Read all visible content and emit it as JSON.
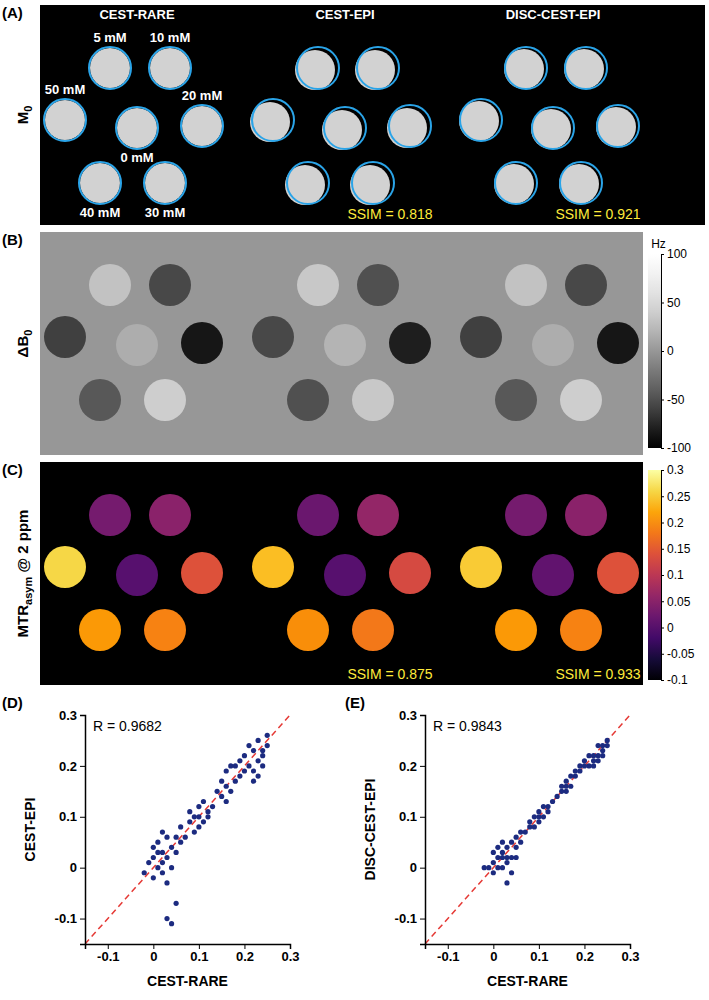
{
  "chart_data": [
    {
      "type": "image",
      "panel": "(A)",
      "columns": [
        "CEST-RARE",
        "CEST-EPI",
        "DISC-CEST-EPI"
      ],
      "row_label": [
        {
          "text": "M"
        },
        {
          "text": "0",
          "sub": true
        }
      ],
      "vial_labels": [
        "5 mM",
        "10 mM",
        "50 mM",
        "0 mM",
        "20 mM",
        "40 mM",
        "30 mM"
      ],
      "annotations": [
        {
          "column": 1,
          "text": "SSIM = 0.818"
        },
        {
          "column": 2,
          "text": "SSIM = 0.921"
        }
      ]
    },
    {
      "type": "heatmap",
      "panel": "(B)",
      "row_label": [
        {
          "text": "ΔB"
        },
        {
          "text": "0",
          "sub": true
        }
      ],
      "values": [
        [
          30,
          -55,
          -60,
          15,
          -85,
          -45,
          40
        ],
        [
          35,
          -50,
          -55,
          20,
          -80,
          -50,
          35
        ],
        [
          30,
          -55,
          -60,
          15,
          -85,
          -45,
          40
        ]
      ],
      "color": "gray",
      "colorbar": {
        "range": [
          -100,
          100
        ],
        "ticks": [
          -100,
          -50,
          0,
          50,
          100
        ],
        "title": "Hz"
      }
    },
    {
      "type": "heatmap",
      "panel": "(C)",
      "row_label": [
        {
          "text": "MTR"
        },
        {
          "text": "asym",
          "sub": true
        },
        {
          "text": " @ 2 ppm"
        }
      ],
      "values": [
        [
          0.03,
          0.05,
          0.26,
          0.0,
          0.14,
          0.21,
          0.19
        ],
        [
          0.02,
          0.06,
          0.24,
          0.0,
          0.13,
          0.2,
          0.18
        ],
        [
          0.03,
          0.05,
          0.25,
          0.01,
          0.14,
          0.21,
          0.19
        ]
      ],
      "color": "inferno",
      "colorbar": {
        "range": [
          -0.1,
          0.3
        ],
        "ticks": [
          -0.1,
          -0.05,
          0,
          0.05,
          0.1,
          0.15,
          0.2,
          0.25,
          0.3
        ]
      },
      "annotations": [
        {
          "column": 1,
          "text": "SSIM = 0.875"
        },
        {
          "column": 2,
          "text": "SSIM = 0.933"
        }
      ]
    },
    {
      "type": "scatter",
      "panel": "(D)",
      "x_label": "CEST-RARE",
      "y_label": "CEST-EPI",
      "annotation": "R = 0.9682",
      "color": "#1c2b80",
      "marker": "circle",
      "xlim": [
        -0.15,
        0.3
      ],
      "ylim": [
        -0.15,
        0.3
      ],
      "xticks": [
        -0.1,
        0,
        0.1,
        0.2,
        0.3
      ],
      "yticks": [
        -0.1,
        0,
        0.1,
        0.2,
        0.3
      ],
      "x": [
        -0.02,
        0.0,
        0.01,
        0.02,
        0.01,
        0.03,
        0.0,
        0.02,
        0.04,
        0.03,
        0.05,
        0.04,
        0.01,
        0.02,
        0.05,
        0.03,
        0.0,
        -0.01,
        0.03,
        0.04,
        0.05,
        0.06,
        0.06,
        0.02,
        0.07,
        0.08,
        0.09,
        0.1,
        0.1,
        0.11,
        0.12,
        0.09,
        0.1,
        0.11,
        0.08,
        0.12,
        0.13,
        0.14,
        0.15,
        0.16,
        0.17,
        0.15,
        0.18,
        0.16,
        0.17,
        0.19,
        0.18,
        0.16,
        0.19,
        0.2,
        0.2,
        0.21,
        0.22,
        0.23,
        0.22,
        0.24,
        0.23,
        0.25,
        0.24,
        0.21,
        0.25,
        0.22,
        0.24,
        0.23
      ],
      "y": [
        -0.01,
        0.02,
        0.0,
        0.03,
        0.05,
        0.02,
        -0.02,
        -0.01,
        0.04,
        0.06,
        0.03,
        0.0,
        0.03,
        0.07,
        0.06,
        -0.03,
        0.04,
        0.01,
        -0.1,
        -0.11,
        -0.07,
        0.05,
        0.08,
        0.01,
        0.06,
        0.09,
        0.1,
        0.1,
        0.12,
        0.09,
        0.11,
        0.07,
        0.08,
        0.13,
        0.11,
        0.1,
        0.12,
        0.15,
        0.14,
        0.16,
        0.15,
        0.17,
        0.17,
        0.19,
        0.2,
        0.18,
        0.2,
        0.13,
        0.21,
        0.19,
        0.22,
        0.2,
        0.23,
        0.21,
        0.19,
        0.23,
        0.25,
        0.24,
        0.2,
        0.24,
        0.26,
        0.17,
        0.22,
        0.18
      ]
    },
    {
      "type": "scatter",
      "panel": "(E)",
      "x_label": "CEST-RARE",
      "y_label": "DISC-CEST-EPI",
      "annotation": "R = 0.9843",
      "color": "#1c2b80",
      "marker": "circle",
      "xlim": [
        -0.15,
        0.3
      ],
      "ylim": [
        -0.15,
        0.3
      ],
      "xticks": [
        -0.1,
        0,
        0.1,
        0.2,
        0.3
      ],
      "yticks": [
        -0.1,
        0,
        0.1,
        0.2,
        0.3
      ],
      "x": [
        -0.02,
        0.0,
        0.01,
        0.02,
        0.01,
        0.03,
        0.0,
        0.02,
        0.04,
        0.03,
        0.05,
        0.04,
        0.01,
        0.02,
        0.05,
        0.03,
        0.0,
        -0.01,
        0.03,
        0.04,
        0.05,
        0.06,
        0.06,
        0.02,
        0.07,
        0.08,
        0.09,
        0.1,
        0.1,
        0.11,
        0.12,
        0.09,
        0.1,
        0.11,
        0.08,
        0.12,
        0.13,
        0.14,
        0.15,
        0.16,
        0.17,
        0.15,
        0.18,
        0.16,
        0.17,
        0.19,
        0.18,
        0.16,
        0.19,
        0.2,
        0.2,
        0.21,
        0.22,
        0.23,
        0.22,
        0.24,
        0.23,
        0.25,
        0.24,
        0.21,
        0.25,
        0.22,
        0.24,
        0.23
      ],
      "y": [
        0.0,
        0.01,
        0.0,
        0.03,
        0.04,
        0.02,
        -0.01,
        0.0,
        0.05,
        0.04,
        0.04,
        0.02,
        0.02,
        0.05,
        0.06,
        0.01,
        0.03,
        0.0,
        -0.03,
        -0.01,
        0.02,
        0.05,
        0.07,
        0.02,
        0.07,
        0.08,
        0.1,
        0.1,
        0.11,
        0.1,
        0.12,
        0.08,
        0.09,
        0.12,
        0.09,
        0.11,
        0.13,
        0.14,
        0.15,
        0.16,
        0.16,
        0.16,
        0.18,
        0.17,
        0.18,
        0.19,
        0.19,
        0.15,
        0.2,
        0.2,
        0.21,
        0.2,
        0.22,
        0.22,
        0.2,
        0.23,
        0.24,
        0.24,
        0.22,
        0.22,
        0.25,
        0.21,
        0.24,
        0.21
      ]
    }
  ]
}
